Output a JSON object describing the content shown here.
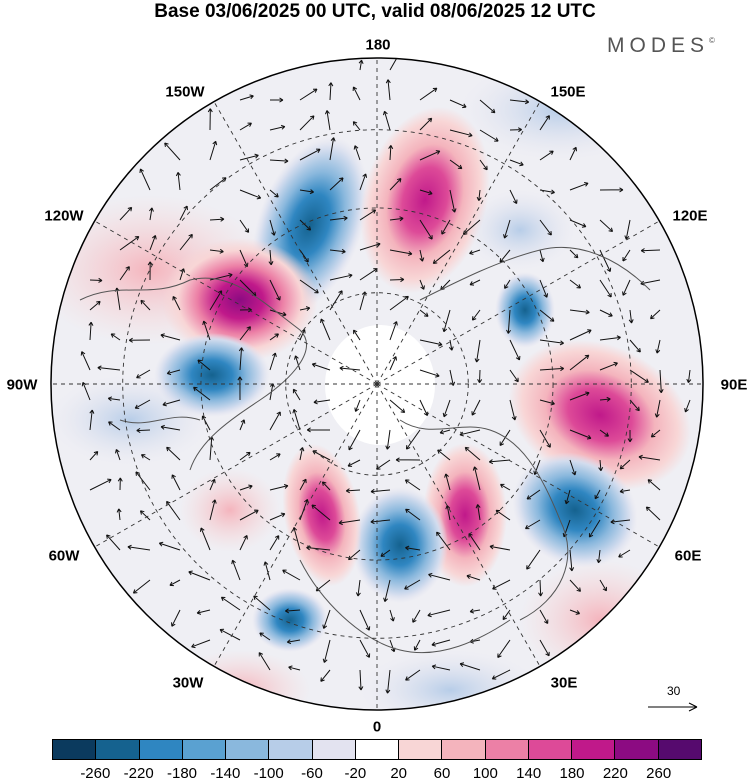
{
  "header": {
    "title": "Base 03/06/2025 00 UTC, valid 08/06/2025 12 UTC",
    "brand": "MODES",
    "brand_mark": "©"
  },
  "map": {
    "projection": "north polar stereographic",
    "lon_labels": [
      "180",
      "150E",
      "120E",
      "90E",
      "60E",
      "30E",
      "0",
      "30W",
      "60W",
      "90W",
      "120W",
      "150W"
    ],
    "reference_vector": "30"
  },
  "colorbar": {
    "colors": [
      "#0b3a5e",
      "#15628f",
      "#2f86c1",
      "#5aa1d1",
      "#8ab8dd",
      "#b7cde8",
      "#e3e3f0",
      "#ffffff",
      "#f8d6d6",
      "#f4b4bd",
      "#ec80a6",
      "#dd4a98",
      "#c0198a",
      "#8c0b82",
      "#560a6e"
    ],
    "labels": [
      "-260",
      "-220",
      "-180",
      "-140",
      "-100",
      "-60",
      "-20",
      "20",
      "60",
      "100",
      "140",
      "180",
      "220",
      "260"
    ]
  }
}
